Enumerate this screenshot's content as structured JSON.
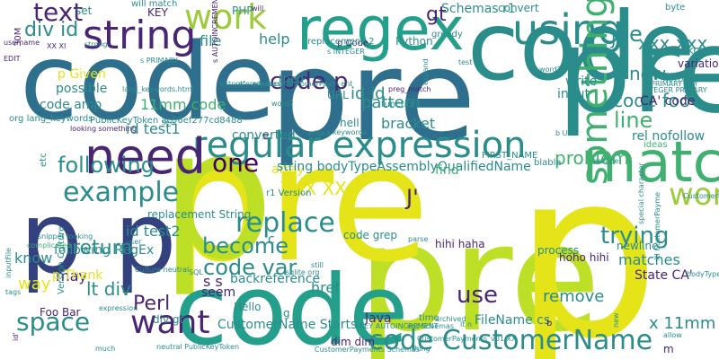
{
  "palette": {
    "navy": "#33427f",
    "blue": "#2f6f8e",
    "teal": "#2b8c8c",
    "sea": "#239f8b",
    "green": "#40b070",
    "lime": "#9ccc3c",
    "chartreuse": "#bddf26",
    "yellow": "#e4e419",
    "purple": "#482575",
    "dark": "#440154"
  },
  "words": [
    {
      "text": "pre",
      "color": "blue"
    },
    {
      "text": "code",
      "color": "blue"
    },
    {
      "text": "pre",
      "color": "chartreuse"
    },
    {
      "text": "pre",
      "color": "yellow"
    },
    {
      "text": "p",
      "color": "chartreuse"
    },
    {
      "text": "p",
      "color": "yellow"
    },
    {
      "text": "pre",
      "color": "teal"
    },
    {
      "text": "code",
      "color": "teal"
    },
    {
      "text": "p p",
      "color": "navy"
    },
    {
      "text": "code",
      "color": "sea"
    },
    {
      "text": "regex",
      "color": "sea"
    },
    {
      "text": "match",
      "color": "green"
    },
    {
      "text": "regular expression",
      "color": "teal"
    },
    {
      "text": "need",
      "color": "purple"
    },
    {
      "text": "string",
      "color": "purple"
    },
    {
      "text": "using",
      "color": "teal"
    },
    {
      "text": "code CustomerName",
      "color": "teal"
    },
    {
      "text": "something",
      "color": "green"
    },
    {
      "text": "example",
      "color": "teal"
    },
    {
      "text": "replace",
      "color": "teal"
    },
    {
      "text": "work",
      "color": "lime"
    },
    {
      "text": "word",
      "color": "lime"
    },
    {
      "text": "want",
      "color": "purple"
    },
    {
      "text": "code p",
      "color": "purple"
    },
    {
      "text": "code var",
      "color": "teal"
    },
    {
      "text": "become",
      "color": "teal"
    },
    {
      "text": "one",
      "color": "dark"
    },
    {
      "text": "text",
      "color": "purple"
    },
    {
      "text": "div id",
      "color": "teal"
    },
    {
      "text": "gt",
      "color": "purple"
    },
    {
      "text": "following",
      "color": "teal"
    },
    {
      "text": "return",
      "color": "teal"
    },
    {
      "text": "use",
      "color": "purple"
    },
    {
      "text": "trying",
      "color": "teal"
    },
    {
      "text": "space",
      "color": "teal"
    },
    {
      "text": "lt div",
      "color": "teal"
    },
    {
      "text": "Perl",
      "color": "purple"
    },
    {
      "text": "xxx xxx",
      "color": "teal"
    },
    {
      "text": "problem",
      "color": "green"
    },
    {
      "text": "line",
      "color": "green"
    },
    {
      "text": "code foo",
      "color": "teal"
    },
    {
      "text": "id id",
      "color": "teal"
    },
    {
      "text": "pattern",
      "color": "teal"
    },
    {
      "text": "matches",
      "color": "teal"
    },
    {
      "text": "XXX XX",
      "color": "yellow"
    },
    {
      "text": "remove",
      "color": "teal"
    },
    {
      "text": "way",
      "color": "yellow"
    },
    {
      "text": "href",
      "color": "teal"
    },
    {
      "text": "know",
      "color": "teal"
    },
    {
      "text": "may",
      "color": "purple"
    },
    {
      "text": "now",
      "color": "teal"
    },
    {
      "text": "file",
      "color": "teal"
    },
    {
      "text": "help",
      "color": "teal"
    },
    {
      "text": "bracket",
      "color": "teal"
    },
    {
      "text": "CustomerName Starts",
      "color": "teal"
    },
    {
      "text": "code amp",
      "color": "teal"
    },
    {
      "text": "State CA'",
      "color": "purple"
    },
    {
      "text": "CA' code",
      "color": "purple"
    },
    {
      "text": "rel nofollow",
      "color": "teal"
    },
    {
      "text": "id test2",
      "color": "teal"
    },
    {
      "text": "id test1",
      "color": "teal"
    },
    {
      "text": "FileName cs",
      "color": "teal"
    },
    {
      "text": "s s",
      "color": "purple"
    },
    {
      "text": "p Thank",
      "color": "yellow"
    },
    {
      "text": "following RegEx",
      "color": "teal"
    },
    {
      "text": "backreference",
      "color": "teal"
    },
    {
      "text": "seem",
      "color": "purple"
    },
    {
      "text": "Java",
      "color": "purple"
    },
    {
      "text": "array",
      "color": "yellow"
    },
    {
      "text": "converted",
      "color": "teal"
    },
    {
      "text": "string bodyTypeAssemblyQualifiedName",
      "color": "teal"
    },
    {
      "text": "replacement String",
      "color": "teal"
    },
    {
      "text": "p Given",
      "color": "yellow"
    },
    {
      "text": "possible",
      "color": "teal"
    },
    {
      "text": "write",
      "color": "teal"
    },
    {
      "text": "input",
      "color": "teal"
    },
    {
      "text": "find",
      "color": "green"
    },
    {
      "text": "URL",
      "color": "teal"
    },
    {
      "text": "Python",
      "color": "teal"
    },
    {
      "text": "Schemas r1",
      "color": "teal"
    },
    {
      "text": "convert",
      "color": "teal"
    },
    {
      "text": "stackoverflow",
      "color": "teal"
    },
    {
      "text": "variations",
      "color": "purple"
    },
    {
      "text": "newline",
      "color": "teal"
    },
    {
      "text": "process",
      "color": "teal"
    },
    {
      "text": "hihi haha",
      "color": "purple"
    },
    {
      "text": "hoho hihi",
      "color": "purple"
    },
    {
      "text": "code grep",
      "color": "teal"
    },
    {
      "text": "tried",
      "color": "teal"
    },
    {
      "text": "KEY",
      "color": "purple"
    },
    {
      "text": "set",
      "color": "teal"
    },
    {
      "text": "PHP",
      "color": "teal"
    },
    {
      "text": "Foo Bar",
      "color": "purple"
    },
    {
      "text": "div gt",
      "color": "teal"
    },
    {
      "text": "Hello",
      "color": "teal"
    },
    {
      "text": "hell",
      "color": "teal"
    },
    {
      "text": "dim dim",
      "color": "purple"
    },
    {
      "text": "11mm code",
      "color": "green"
    },
    {
      "text": "x 11mm",
      "color": "teal"
    },
    {
      "text": "J",
      "color": "teal"
    },
    {
      "text": "J'",
      "color": "purple"
    },
    {
      "text": "e",
      "color": "teal"
    },
    {
      "text": "c",
      "color": "teal"
    },
    {
      "text": "g",
      "color": "teal"
    },
    {
      "text": "m",
      "color": "purple"
    },
    {
      "text": "b",
      "color": "purple"
    },
    {
      "text": "will match",
      "color": "teal"
    },
    {
      "text": "byte",
      "color": "teal"
    },
    {
      "text": "greedy",
      "color": "teal"
    },
    {
      "text": "p Code",
      "color": "purple"
    },
    {
      "text": "replacement_2",
      "color": "teal"
    },
    {
      "text": "preg_match",
      "color": "purple"
    },
    {
      "text": "function",
      "color": "teal"
    },
    {
      "text": "lang_keywords.html",
      "color": "teal"
    },
    {
      "text": "escape",
      "color": "teal"
    },
    {
      "text": "word2",
      "color": "teal"
    },
    {
      "text": "word3",
      "color": "teal"
    },
    {
      "text": "INTEGER PRIMARY",
      "color": "teal"
    },
    {
      "text": "PRIMARY KEY",
      "color": "teal"
    },
    {
      "text": "AUTOINCREMENT",
      "color": "teal"
    },
    {
      "text": "r1 Version",
      "color": "teal"
    },
    {
      "text": "added",
      "color": "teal"
    },
    {
      "text": "keywords",
      "color": "teal"
    },
    {
      "text": "FIRST_NAME",
      "color": "teal"
    },
    {
      "text": "blabla",
      "color": "teal"
    },
    {
      "text": "ideas",
      "color": "green"
    },
    {
      "text": "parse",
      "color": "teal"
    },
    {
      "text": "user",
      "color": "teal"
    },
    {
      "text": "Culture neutral",
      "color": "teal"
    },
    {
      "text": "SQL",
      "color": "teal"
    },
    {
      "text": "tags",
      "color": "teal"
    },
    {
      "text": "inputFile",
      "color": "teal"
    },
    {
      "text": "Version Culture",
      "color": "teal"
    },
    {
      "text": "snippet looking",
      "color": "teal"
    },
    {
      "text": "complicated",
      "color": "green"
    },
    {
      "text": "etc",
      "color": "teal"
    },
    {
      "text": "30M",
      "color": "purple"
    },
    {
      "text": "EDIT",
      "color": "purple"
    },
    {
      "text": "XX XI",
      "color": "purple"
    },
    {
      "text": "strong",
      "color": "teal"
    },
    {
      "text": "username",
      "color": "purple"
    },
    {
      "text": "org lang_keywords",
      "color": "teal"
    },
    {
      "text": "looking something",
      "color": "purple"
    },
    {
      "text": "see",
      "color": "teal"
    },
    {
      "text": "expression",
      "color": "teal"
    },
    {
      "text": "much",
      "color": "teal"
    },
    {
      "text": "sqlite org",
      "color": "teal"
    },
    {
      "text": "still",
      "color": "teal"
    },
    {
      "text": "thing",
      "color": "teal"
    },
    {
      "text": "allow",
      "color": "teal"
    },
    {
      "text": "archived",
      "color": "teal"
    },
    {
      "text": "expand",
      "color": "teal"
    },
    {
      "text": "time",
      "color": "teal"
    },
    {
      "text": "test",
      "color": "teal"
    },
    {
      "text": "will",
      "color": "purple"
    },
    {
      "text": "id'",
      "color": "purple"
    },
    {
      "text": "id",
      "color": "purple"
    },
    {
      "text": "new",
      "color": "teal"
    },
    {
      "text": "special character",
      "color": "teal"
    },
    {
      "text": "XI CustomerPayme",
      "color": "teal"
    },
    {
      "text": "CustomerPayments_v01",
      "color": "teal"
    },
    {
      "text": "bodyTypeAssemblyQualifiedName XXX",
      "color": "teal"
    },
    {
      "text": "neutral PublicKeyToken",
      "color": "teal"
    },
    {
      "text": "CustomerPayments Schemas",
      "color": "teal"
    },
    {
      "text": "ent Schemas",
      "color": "teal"
    },
    {
      "text": "KEY AUTOINCREMENT",
      "color": "teal"
    },
    {
      "text": "CustomerPayments_v01 XX",
      "color": "teal"
    },
    {
      "text": "PublicKeyToken ac56ef277cd8488",
      "color": "teal"
    },
    {
      "text": "b UI",
      "color": "teal"
    },
    {
      "text": "s INTEGER",
      "color": "teal"
    },
    {
      "text": "s PRIMARY",
      "color": "teal"
    },
    {
      "text": "s AUTOINCREMENT",
      "color": "purple"
    },
    {
      "text": "lt n",
      "color": "teal"
    },
    {
      "text": "output",
      "color": "teal"
    },
    {
      "text": "reference",
      "color": "teal"
    },
    {
      "text": "advance",
      "color": "teal"
    },
    {
      "text": "dash",
      "color": "teal"
    },
    {
      "text": "CustomerPaym ent",
      "color": "teal"
    }
  ]
}
